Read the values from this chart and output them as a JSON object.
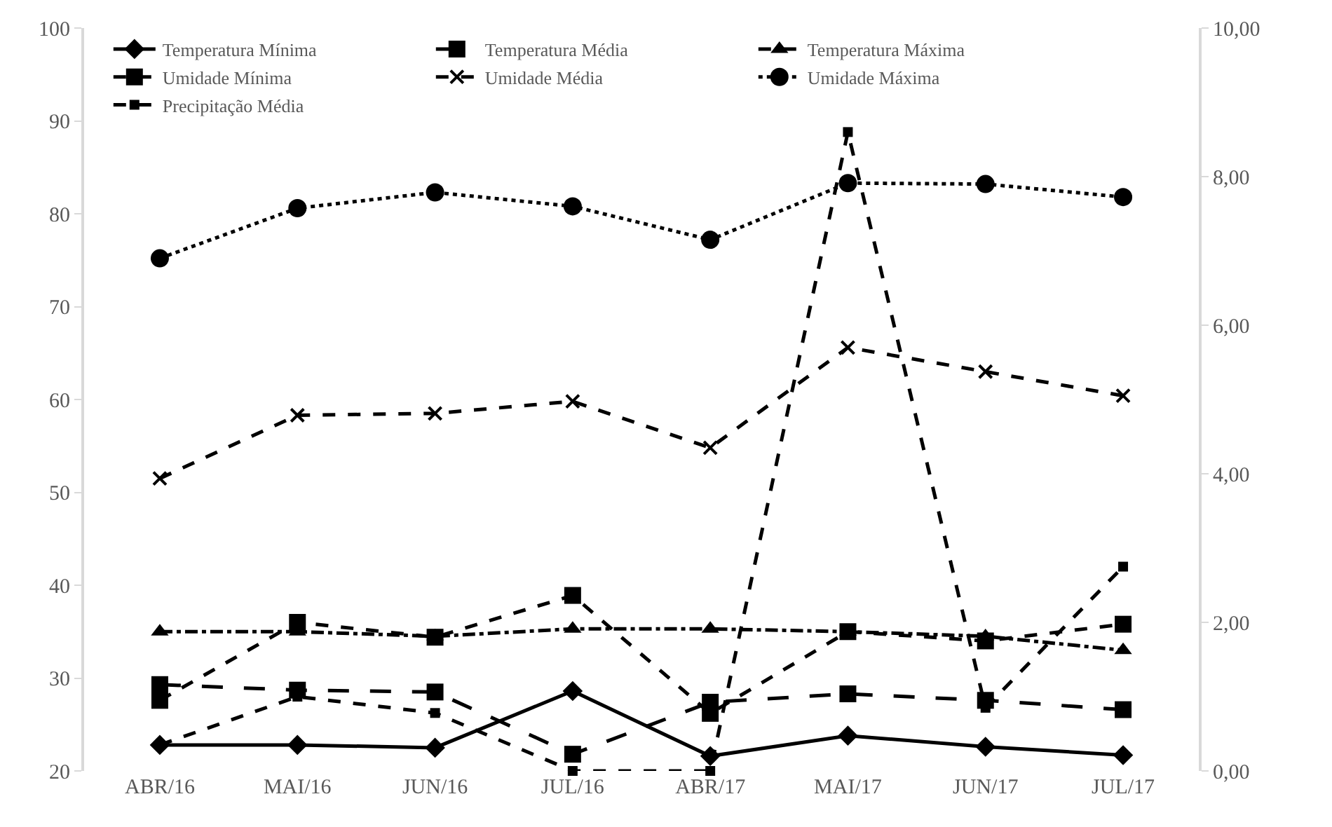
{
  "chart_data": {
    "type": "line",
    "categories": [
      "ABR/16",
      "MAI/16",
      "JUN/16",
      "JUL/16",
      "ABR/17",
      "MAI/17",
      "JUN/17",
      "JUL/17"
    ],
    "ylim": [
      20,
      100
    ],
    "yticks": [
      20,
      30,
      40,
      50,
      60,
      70,
      80,
      90,
      100
    ],
    "y2lim": [
      0,
      10
    ],
    "y2ticks": [
      {
        "value": 0,
        "label": "0,00"
      },
      {
        "value": 2,
        "label": "2,00"
      },
      {
        "value": 4,
        "label": "4,00"
      },
      {
        "value": 6,
        "label": "6,00"
      },
      {
        "value": 8,
        "label": "8,00"
      },
      {
        "value": 10,
        "label": "10,00"
      }
    ],
    "grid": false,
    "legend": "top",
    "series": [
      {
        "name": "Temperatura Mínima",
        "color": "#000000",
        "marker": "diamond",
        "line_style": "solid",
        "values": [
          22.8,
          22.8,
          22.5,
          28.6,
          21.6,
          23.8,
          22.6,
          21.7
        ]
      },
      {
        "name": "Temperatura Média",
        "color": "#000000",
        "marker": "square",
        "line_style": "longdash",
        "values": [
          29.3,
          28.7,
          28.5,
          21.8,
          27.4,
          28.3,
          27.6,
          26.6
        ]
      },
      {
        "name": "Temperatura Máxima",
        "color": "#000000",
        "marker": "triangle",
        "line_style": "dashdot",
        "values": [
          35.0,
          35.0,
          34.5,
          35.3,
          35.3,
          35.0,
          34.5,
          33.0
        ]
      },
      {
        "name": "Umidade Mínima",
        "color": "#000000",
        "marker": "square",
        "line_style": "dashed",
        "values": [
          27.6,
          36.0,
          34.4,
          38.9,
          26.2,
          35.0,
          34.0,
          35.8
        ]
      },
      {
        "name": "Umidade Média",
        "color": "#000000",
        "marker": "cross",
        "line_style": "dashed",
        "values": [
          51.5,
          58.3,
          58.5,
          59.8,
          54.8,
          65.6,
          63.0,
          60.4
        ]
      },
      {
        "name": "Umidade Máxima",
        "color": "#000000",
        "marker": "circle",
        "line_style": "dotted",
        "values": [
          75.2,
          80.6,
          82.3,
          80.8,
          77.2,
          83.3,
          83.2,
          81.8
        ]
      },
      {
        "name": "Precipitação Média",
        "color": "#000000",
        "marker": "square",
        "line_style": "dashed",
        "axis": "y2",
        "values": [
          0.35,
          1.0,
          0.78,
          0.0,
          0.0,
          8.6,
          0.85,
          2.75
        ]
      }
    ]
  }
}
